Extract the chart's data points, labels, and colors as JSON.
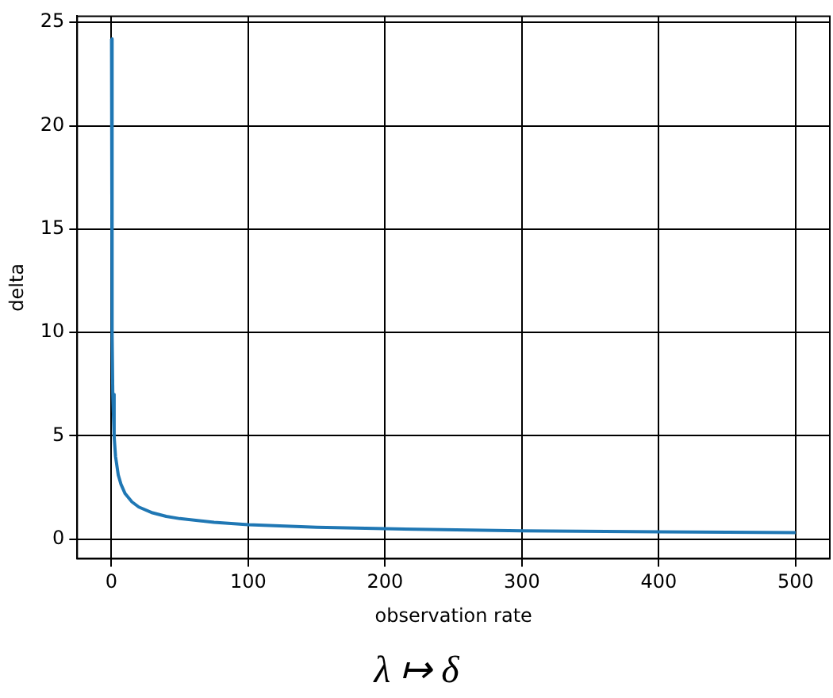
{
  "chart_data": {
    "type": "line",
    "xlabel": "observation rate",
    "ylabel": "delta",
    "annotations": [
      "λ ↦ δ"
    ],
    "x": [
      0.08,
      0.5,
      1,
      2,
      3,
      5,
      7,
      10,
      15,
      20,
      30,
      40,
      50,
      75,
      100,
      150,
      200,
      300,
      400,
      500
    ],
    "series": [
      {
        "color": "#1f77b4",
        "values": [
          24.2,
          9.9,
          7.0,
          4.95,
          4.0,
          3.1,
          2.65,
          2.2,
          1.8,
          1.55,
          1.27,
          1.1,
          0.99,
          0.81,
          0.7,
          0.57,
          0.5,
          0.4,
          0.35,
          0.31
        ]
      }
    ],
    "xlim": [
      -25,
      525
    ],
    "ylim": [
      -0.95,
      25.3
    ],
    "xticks": [
      0,
      100,
      200,
      300,
      400,
      500
    ],
    "yticks": [
      0,
      5,
      10,
      15,
      20,
      25
    ],
    "grid": true,
    "legend": false,
    "marker": "none",
    "line_style": "solid"
  }
}
